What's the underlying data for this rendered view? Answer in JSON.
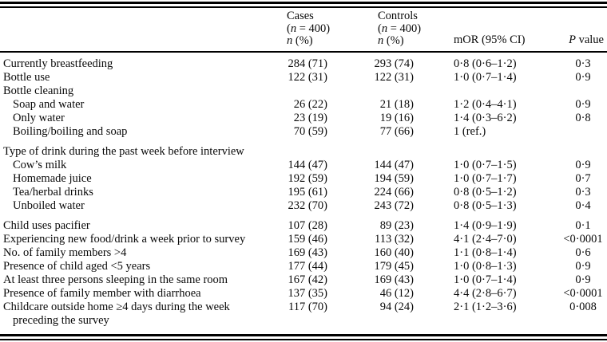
{
  "table": {
    "columns": {
      "cases_title": "Cases",
      "cases_n_open": "(",
      "cases_n_italic": "n",
      "cases_n_close": " = 400)",
      "cases_stat_italic": "n",
      "cases_stat_rest": " (%)",
      "controls_title": "Controls",
      "controls_n_open": "(",
      "controls_n_italic": "n",
      "controls_n_close": " = 400)",
      "controls_stat_italic": "n",
      "controls_stat_rest": " (%)",
      "mor": "mOR (95% CI)",
      "p_italic": "P",
      "p_rest": " value"
    },
    "rows": [
      {
        "label": "Currently breastfeeding",
        "indent": false,
        "spacer": false,
        "cases": "284 (71)",
        "controls": "293 (74)",
        "mor": "0·8 (0·6–1·2)",
        "p": "0·3"
      },
      {
        "label": "Bottle use",
        "indent": false,
        "spacer": false,
        "cases": "122 (31)",
        "controls": "122 (31)",
        "mor": "1·0 (0·7–1·4)",
        "p": "0·9"
      },
      {
        "label": "Bottle cleaning",
        "indent": false,
        "spacer": false,
        "cases": "",
        "controls": "",
        "mor": "",
        "p": ""
      },
      {
        "label": "Soap and water",
        "indent": true,
        "spacer": false,
        "cases": "26 (22)",
        "controls": "21 (18)",
        "mor": "1·2 (0·4–4·1)",
        "p": "0·9"
      },
      {
        "label": "Only water",
        "indent": true,
        "spacer": false,
        "cases": "23 (19)",
        "controls": "19 (16)",
        "mor": "1·4 (0·3–6·2)",
        "p": "0·8"
      },
      {
        "label": "Boiling/boiling and soap",
        "indent": true,
        "spacer": false,
        "cases": "70 (59)",
        "controls": "77 (66)",
        "mor": "1 (ref.)",
        "p": ""
      },
      {
        "label": "Type of drink during the past week before interview",
        "indent": false,
        "spacer": true,
        "cases": "",
        "controls": "",
        "mor": "",
        "p": ""
      },
      {
        "label": "Cow’s milk",
        "indent": true,
        "spacer": false,
        "cases": "144 (47)",
        "controls": "144 (47)",
        "mor": "1·0 (0·7–1·5)",
        "p": "0·9"
      },
      {
        "label": "Homemade juice",
        "indent": true,
        "spacer": false,
        "cases": "192 (59)",
        "controls": "194 (59)",
        "mor": "1·0 (0·7–1·7)",
        "p": "0·7"
      },
      {
        "label": "Tea/herbal drinks",
        "indent": true,
        "spacer": false,
        "cases": "195 (61)",
        "controls": "224 (66)",
        "mor": "0·8 (0·5–1·2)",
        "p": "0·3"
      },
      {
        "label": "Unboiled water",
        "indent": true,
        "spacer": false,
        "cases": "232 (70)",
        "controls": "243 (72)",
        "mor": "0·8 (0·5–1·3)",
        "p": "0·4"
      },
      {
        "label": "Child uses pacifier",
        "indent": false,
        "spacer": true,
        "cases": "107 (28)",
        "controls": "89 (23)",
        "mor": "1·4 (0·9–1·9)",
        "p": "0·1"
      },
      {
        "label": "Experiencing new food/drink a week prior to survey",
        "indent": false,
        "spacer": false,
        "cases": "159 (46)",
        "controls": "113 (32)",
        "mor": "4·1 (2·4–7·0)",
        "p": "<0·0001"
      },
      {
        "label": "No. of family members >4",
        "indent": false,
        "spacer": false,
        "cases": "169 (43)",
        "controls": "160 (40)",
        "mor": "1·1 (0·8–1·4)",
        "p": "0·6"
      },
      {
        "label": "Presence of child aged <5 years",
        "indent": false,
        "spacer": false,
        "cases": "177 (44)",
        "controls": "179 (45)",
        "mor": "1·0 (0·8–1·3)",
        "p": "0·9"
      },
      {
        "label": "At least three persons sleeping in the same room",
        "indent": false,
        "spacer": false,
        "cases": "167 (42)",
        "controls": "169 (43)",
        "mor": "1·0 (0·7–1·4)",
        "p": "0·9"
      },
      {
        "label": "Presence of family member with diarrhoea",
        "indent": false,
        "spacer": false,
        "cases": "137 (35)",
        "controls": "46 (12)",
        "mor": "4·4 (2·8–6·7)",
        "p": "<0·0001"
      },
      {
        "label": "Childcare outside home ≥4 days during the week",
        "label_cont": "preceding the survey",
        "indent": false,
        "spacer": false,
        "cases": "117 (70)",
        "controls": "94 (24)",
        "mor": "2·1 (1·2–3·6)",
        "p": "0·008"
      }
    ]
  }
}
